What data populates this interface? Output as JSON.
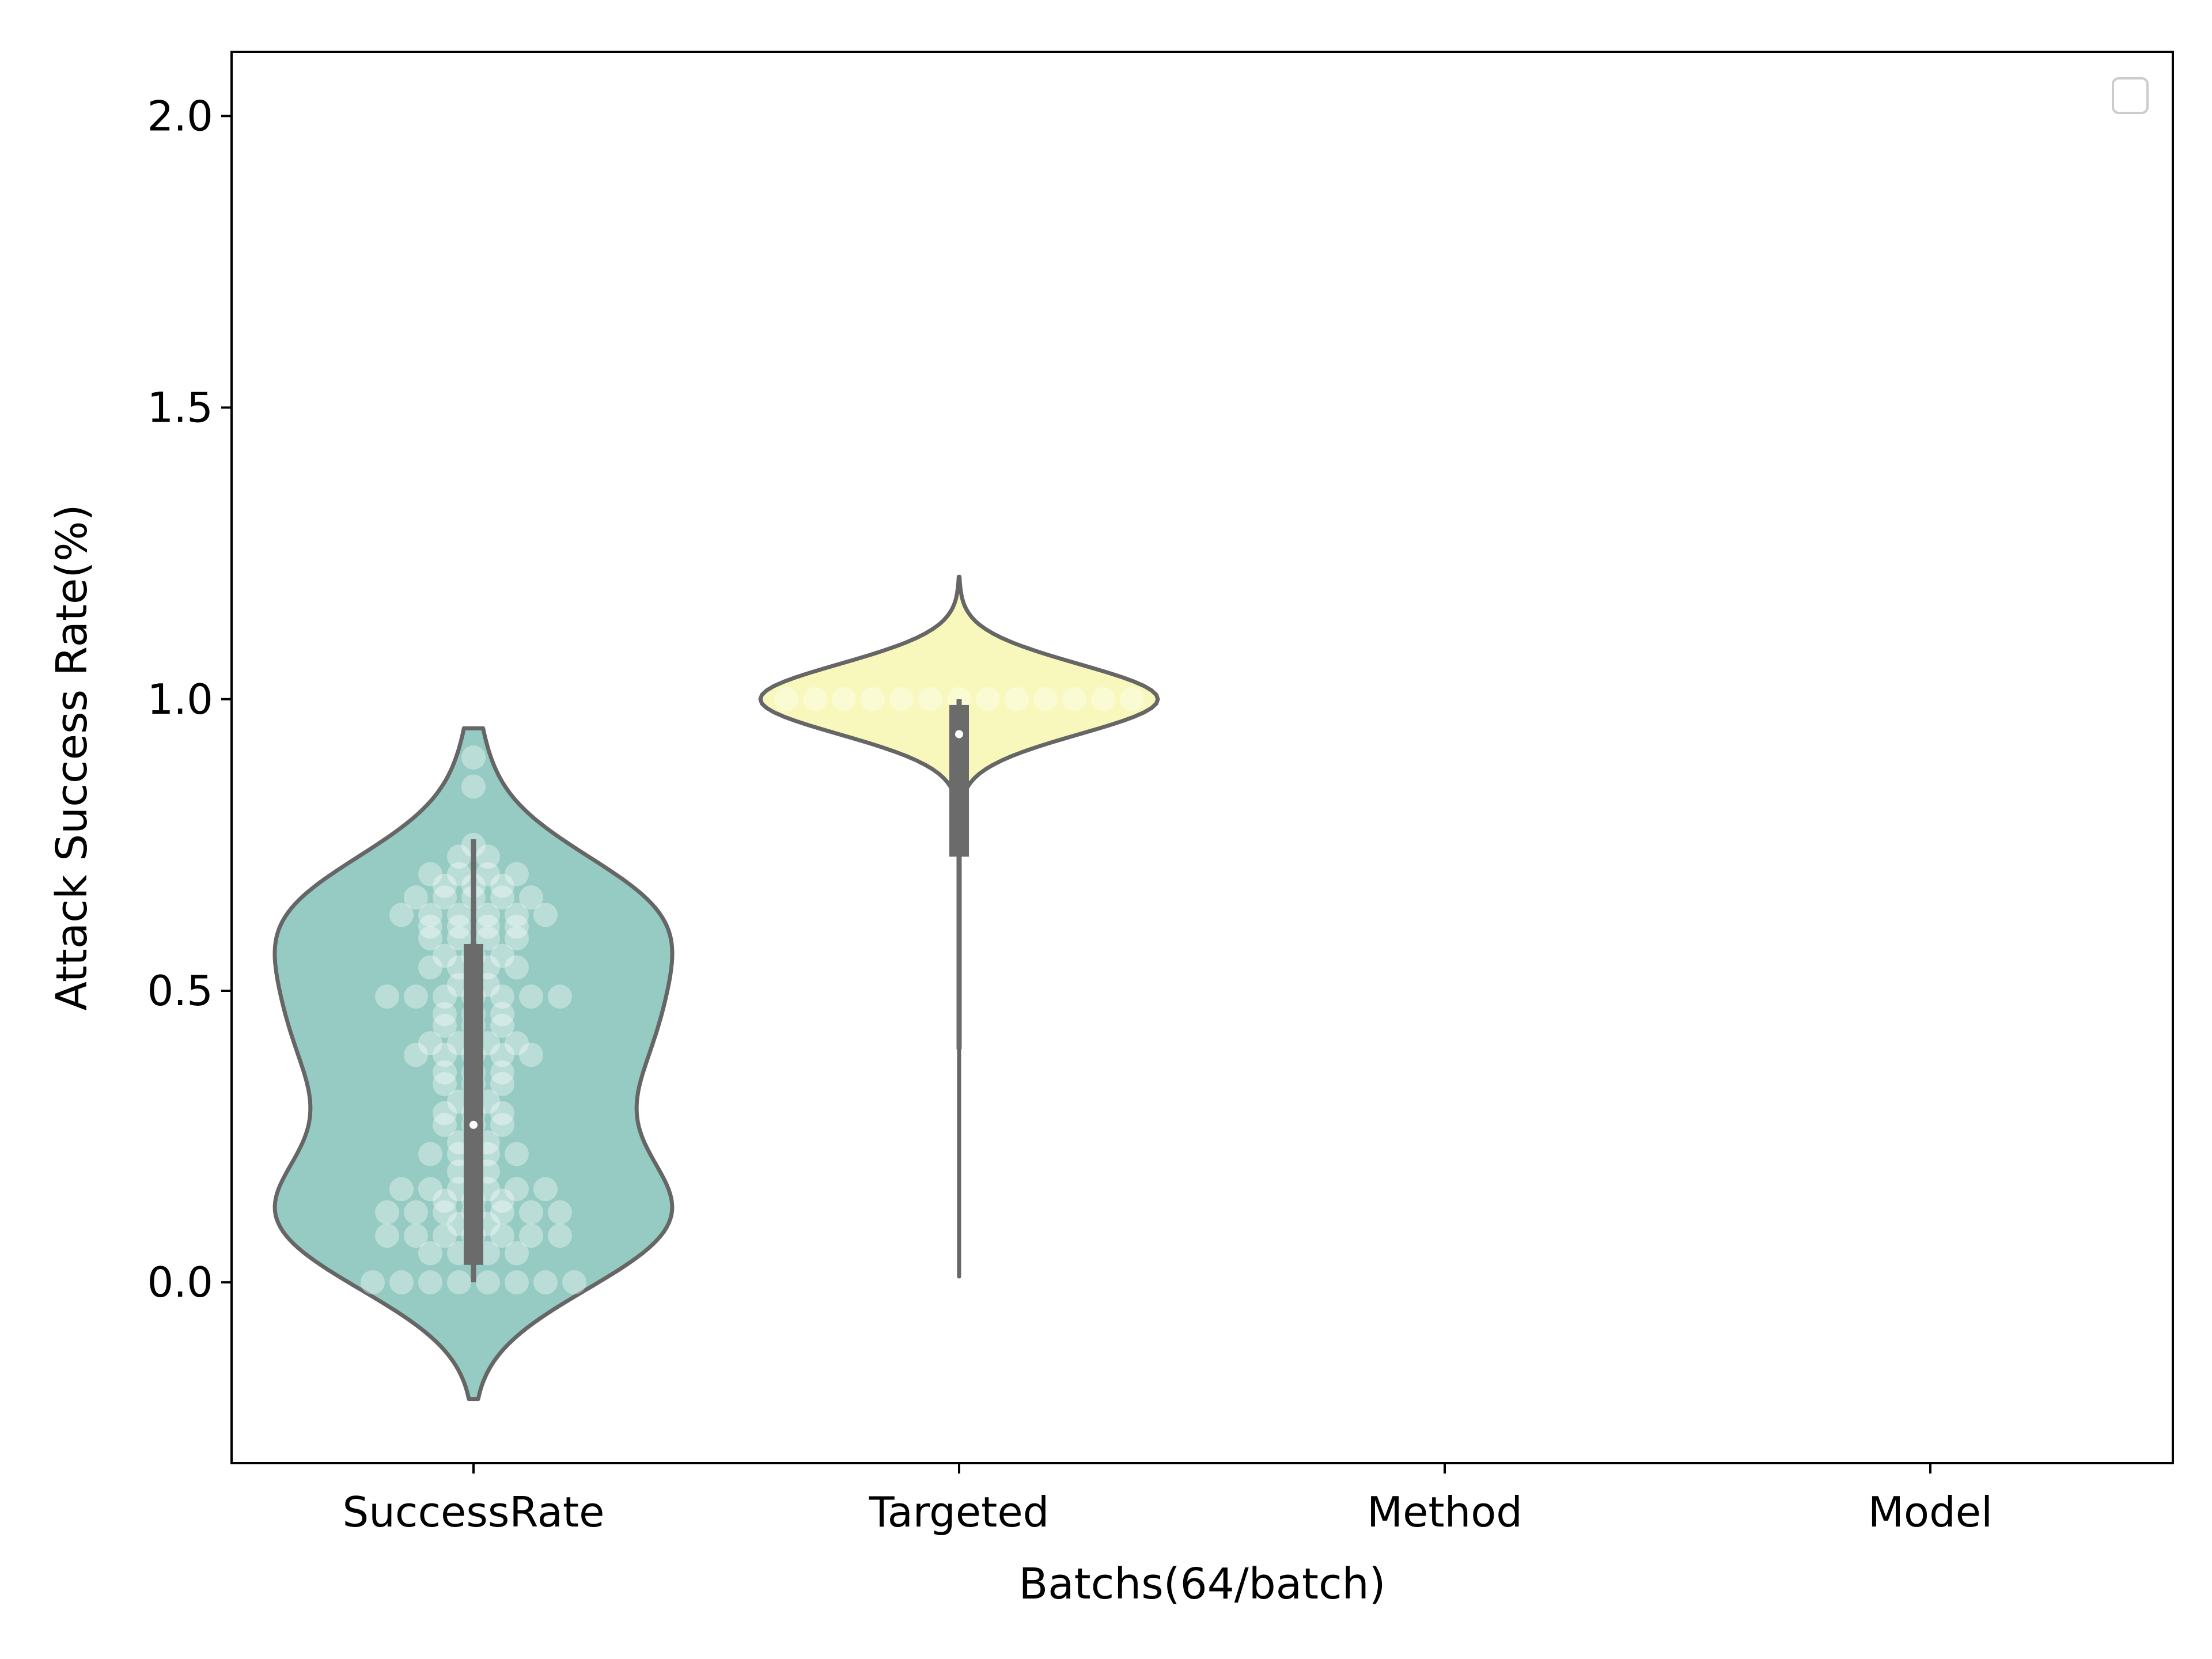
{
  "chart_data": {
    "type": "violin",
    "title": "",
    "xlabel": "Batchs(64/batch)",
    "ylabel": "Attack Success Rate(%)",
    "categories": [
      "SuccessRate",
      "Targeted",
      "Method",
      "Model"
    ],
    "ylim": [
      -0.31,
      2.11
    ],
    "yticks": [
      0.0,
      0.5,
      1.0,
      1.5,
      2.0
    ],
    "ytick_labels": [
      "0.0",
      "0.5",
      "1.0",
      "1.5",
      "2.0"
    ],
    "legend": {
      "position": "top-right",
      "entries": []
    },
    "grid": false,
    "series": [
      {
        "category": "SuccessRate",
        "color": "#95cbc2",
        "violin_range": [
          -0.2,
          0.95
        ],
        "box": {
          "q1": 0.03,
          "median": 0.27,
          "q3": 0.58,
          "whisker_low": 0.0,
          "whisker_high": 0.76
        },
        "points": [
          0.0,
          0.0,
          0.0,
          0.0,
          0.0,
          0.0,
          0.0,
          0.0,
          0.05,
          0.05,
          0.05,
          0.05,
          0.08,
          0.08,
          0.08,
          0.08,
          0.08,
          0.08,
          0.08,
          0.1,
          0.1,
          0.12,
          0.12,
          0.12,
          0.12,
          0.12,
          0.12,
          0.12,
          0.14,
          0.14,
          0.14,
          0.16,
          0.16,
          0.16,
          0.16,
          0.16,
          0.16,
          0.19,
          0.19,
          0.22,
          0.22,
          0.22,
          0.22,
          0.24,
          0.24,
          0.27,
          0.27,
          0.27,
          0.29,
          0.29,
          0.29,
          0.31,
          0.31,
          0.34,
          0.34,
          0.34,
          0.36,
          0.36,
          0.36,
          0.39,
          0.39,
          0.39,
          0.39,
          0.39,
          0.41,
          0.41,
          0.41,
          0.41,
          0.44,
          0.44,
          0.44,
          0.46,
          0.46,
          0.46,
          0.49,
          0.49,
          0.49,
          0.49,
          0.49,
          0.49,
          0.49,
          0.51,
          0.51,
          0.54,
          0.54,
          0.54,
          0.54,
          0.56,
          0.56,
          0.56,
          0.59,
          0.59,
          0.59,
          0.59,
          0.61,
          0.61,
          0.61,
          0.61,
          0.63,
          0.63,
          0.63,
          0.63,
          0.63,
          0.63,
          0.66,
          0.66,
          0.66,
          0.66,
          0.66,
          0.68,
          0.68,
          0.68,
          0.7,
          0.7,
          0.7,
          0.7,
          0.73,
          0.73,
          0.75,
          0.85,
          0.9
        ]
      },
      {
        "category": "Targeted",
        "color": "#f8f8bc",
        "violin_range": [
          0.01,
          1.21
        ],
        "box": {
          "q1": 0.73,
          "median": 0.94,
          "q3": 0.99,
          "whisker_low": 0.4,
          "whisker_high": 1.0
        },
        "points": [
          1.0,
          1.0,
          1.0,
          1.0,
          1.0,
          1.0,
          1.0,
          1.0,
          1.0,
          1.0,
          1.0,
          1.0,
          1.0
        ]
      },
      {
        "category": "Method",
        "color": "#bebada",
        "violin_range": null,
        "box": null,
        "points": []
      },
      {
        "category": "Model",
        "color": "#fb8072",
        "violin_range": null,
        "box": null,
        "points": []
      }
    ]
  }
}
